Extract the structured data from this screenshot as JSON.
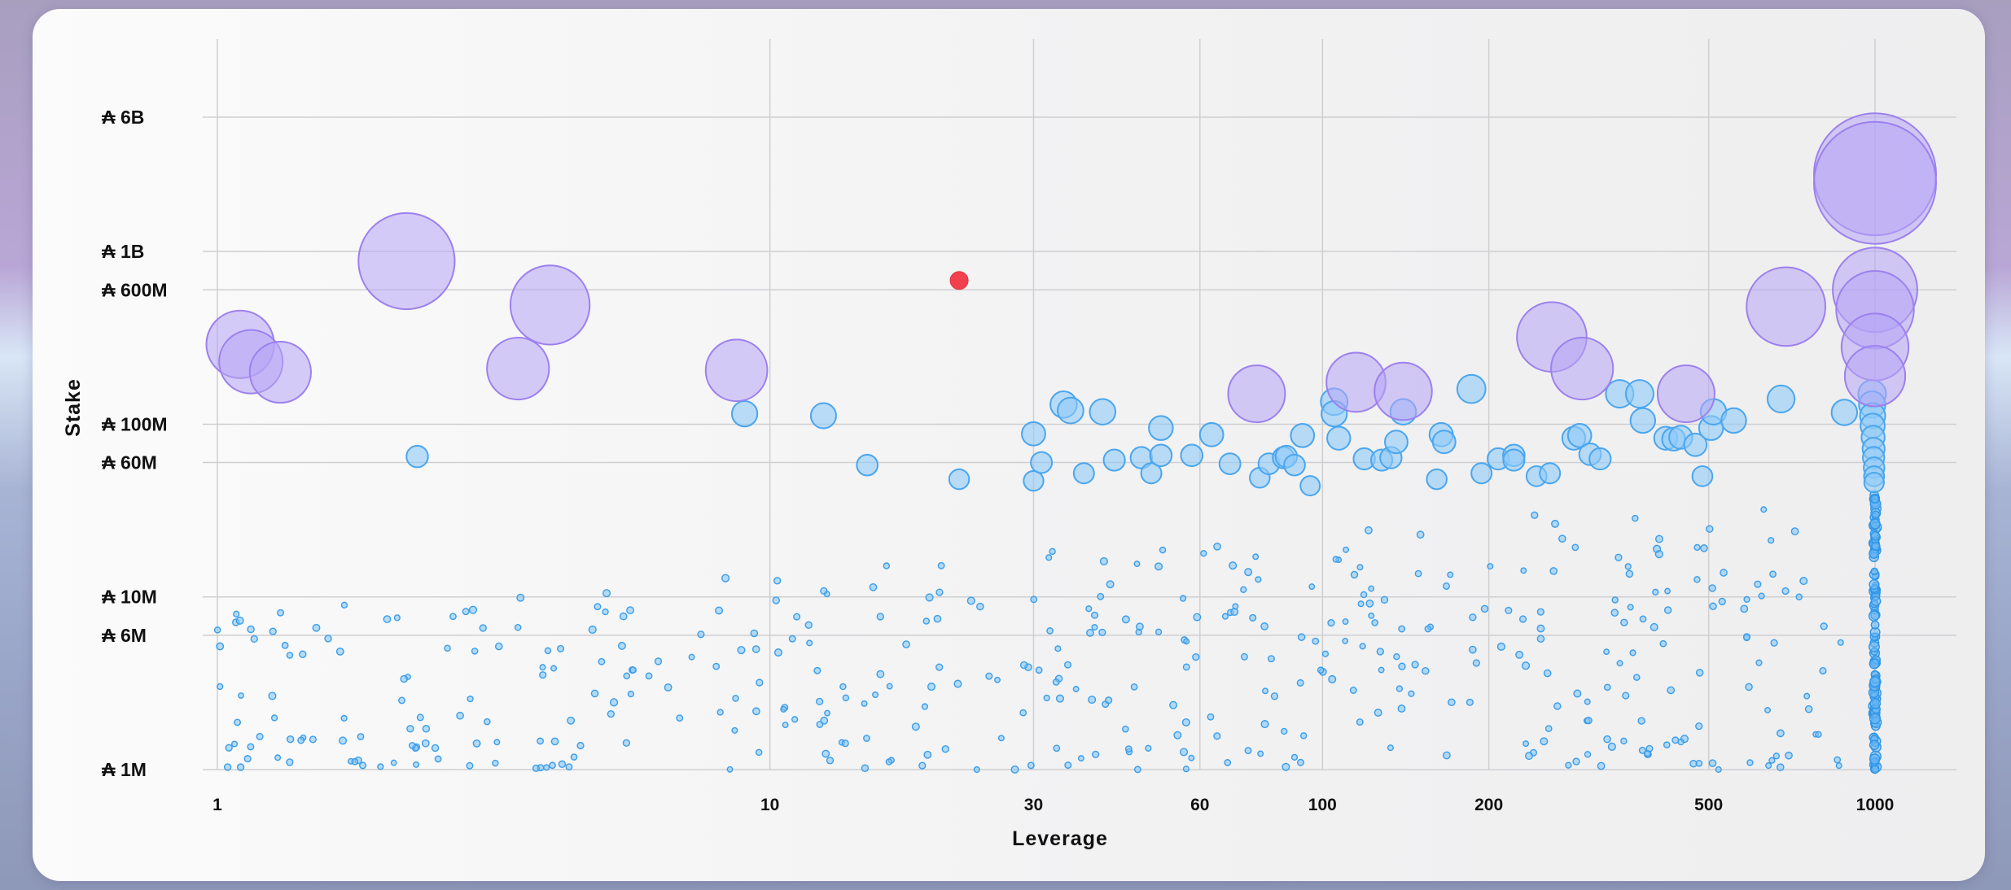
{
  "chart_data": {
    "type": "scatter",
    "title": "",
    "xlabel": "Leverage",
    "ylabel": "Stake",
    "x_scale": "log",
    "y_scale": "log",
    "xlim": [
      1,
      1000
    ],
    "ylim": [
      1000000,
      6000000000
    ],
    "x_ticks": [
      1,
      10,
      30,
      60,
      100,
      200,
      500,
      1000
    ],
    "x_tick_labels": [
      "1",
      "10",
      "30",
      "60",
      "100",
      "200",
      "500",
      "1000"
    ],
    "y_ticks": [
      1000000,
      6000000,
      10000000,
      60000000,
      100000000,
      600000000,
      1000000000,
      6000000000
    ],
    "y_tick_labels": [
      "₳ 1M",
      "₳ 6M",
      "₳ 10M",
      "₳ 60M",
      "₳ 100M",
      "₳ 600M",
      "₳ 1B",
      "₳ 6B"
    ],
    "grid": true,
    "colors": {
      "large": "#a98cf2",
      "medium": "#5fb0f0",
      "small": "#46a6ef",
      "highlight": "#f2404f"
    },
    "highlight_point": {
      "x": 22,
      "y": 680000000
    },
    "large_stakers": [
      {
        "x": 1.1,
        "y": 290000000
      },
      {
        "x": 1.15,
        "y": 230000000
      },
      {
        "x": 1.3,
        "y": 200000000
      },
      {
        "x": 2.2,
        "y": 880000000
      },
      {
        "x": 3.5,
        "y": 210000000
      },
      {
        "x": 4.0,
        "y": 490000000
      },
      {
        "x": 8.7,
        "y": 205000000
      },
      {
        "x": 76,
        "y": 150000000
      },
      {
        "x": 115,
        "y": 175000000
      },
      {
        "x": 140,
        "y": 155000000
      },
      {
        "x": 260,
        "y": 320000000
      },
      {
        "x": 295,
        "y": 210000000
      },
      {
        "x": 455,
        "y": 150000000
      },
      {
        "x": 690,
        "y": 480000000
      },
      {
        "x": 1000,
        "y": 2800000000
      },
      {
        "x": 1000,
        "y": 2500000000
      },
      {
        "x": 1000,
        "y": 600000000
      },
      {
        "x": 1000,
        "y": 460000000
      },
      {
        "x": 1000,
        "y": 280000000
      },
      {
        "x": 1000,
        "y": 190000000
      }
    ],
    "medium_stakers": [
      {
        "x": 2.3,
        "y": 65000000
      },
      {
        "x": 9.0,
        "y": 115000000
      },
      {
        "x": 12.5,
        "y": 112000000
      },
      {
        "x": 15,
        "y": 58000000
      },
      {
        "x": 22,
        "y": 48000000
      },
      {
        "x": 30,
        "y": 88000000
      },
      {
        "x": 30,
        "y": 47000000
      },
      {
        "x": 31,
        "y": 60000000
      },
      {
        "x": 34,
        "y": 130000000
      },
      {
        "x": 35,
        "y": 120000000
      },
      {
        "x": 37,
        "y": 52000000
      },
      {
        "x": 40,
        "y": 118000000
      },
      {
        "x": 42,
        "y": 62000000
      },
      {
        "x": 47,
        "y": 64000000
      },
      {
        "x": 49,
        "y": 52000000
      },
      {
        "x": 51,
        "y": 95000000
      },
      {
        "x": 51,
        "y": 66000000
      },
      {
        "x": 58,
        "y": 66000000
      },
      {
        "x": 63,
        "y": 87000000
      },
      {
        "x": 68,
        "y": 59000000
      },
      {
        "x": 77,
        "y": 49000000
      },
      {
        "x": 80,
        "y": 59000000
      },
      {
        "x": 85,
        "y": 64000000
      },
      {
        "x": 86,
        "y": 65000000
      },
      {
        "x": 89,
        "y": 58000000
      },
      {
        "x": 92,
        "y": 86000000
      },
      {
        "x": 95,
        "y": 44000000
      },
      {
        "x": 105,
        "y": 135000000
      },
      {
        "x": 105,
        "y": 115000000
      },
      {
        "x": 107,
        "y": 83000000
      },
      {
        "x": 119,
        "y": 63000000
      },
      {
        "x": 128,
        "y": 62000000
      },
      {
        "x": 133,
        "y": 64000000
      },
      {
        "x": 136,
        "y": 79000000
      },
      {
        "x": 140,
        "y": 118000000
      },
      {
        "x": 161,
        "y": 48000000
      },
      {
        "x": 164,
        "y": 87000000
      },
      {
        "x": 166,
        "y": 79000000
      },
      {
        "x": 186,
        "y": 160000000
      },
      {
        "x": 194,
        "y": 52000000
      },
      {
        "x": 208,
        "y": 63000000
      },
      {
        "x": 222,
        "y": 66000000
      },
      {
        "x": 222,
        "y": 62000000
      },
      {
        "x": 244,
        "y": 50000000
      },
      {
        "x": 258,
        "y": 52000000
      },
      {
        "x": 285,
        "y": 83000000
      },
      {
        "x": 292,
        "y": 86000000
      },
      {
        "x": 305,
        "y": 67000000
      },
      {
        "x": 318,
        "y": 63000000
      },
      {
        "x": 345,
        "y": 150000000
      },
      {
        "x": 375,
        "y": 150000000
      },
      {
        "x": 380,
        "y": 105000000
      },
      {
        "x": 418,
        "y": 83000000
      },
      {
        "x": 432,
        "y": 82000000
      },
      {
        "x": 445,
        "y": 84000000
      },
      {
        "x": 473,
        "y": 76000000
      },
      {
        "x": 487,
        "y": 50000000
      },
      {
        "x": 505,
        "y": 95000000
      },
      {
        "x": 510,
        "y": 118000000
      },
      {
        "x": 555,
        "y": 105000000
      },
      {
        "x": 676,
        "y": 140000000
      },
      {
        "x": 880,
        "y": 117000000
      },
      {
        "x": 988,
        "y": 150000000
      },
      {
        "x": 988,
        "y": 130000000
      },
      {
        "x": 990,
        "y": 112000000
      },
      {
        "x": 990,
        "y": 98000000
      },
      {
        "x": 992,
        "y": 84000000
      },
      {
        "x": 994,
        "y": 72000000
      },
      {
        "x": 994,
        "y": 64000000
      },
      {
        "x": 996,
        "y": 56000000
      },
      {
        "x": 996,
        "y": 50000000
      },
      {
        "x": 996,
        "y": 46000000
      }
    ],
    "small_stakers_note": "Approximately 500 additional stake pools with stakes roughly between ₳ 1M and ₳ 30M, spread across leverage 1 to 1000 with a dense column at leverage 1000."
  }
}
